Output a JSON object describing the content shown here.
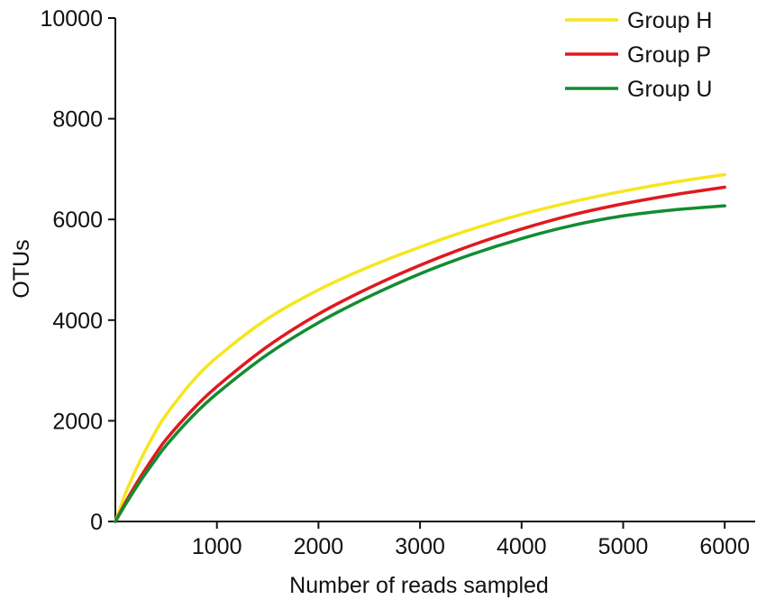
{
  "chart_data": {
    "type": "line",
    "title": "",
    "xlabel": "Number of reads sampled",
    "ylabel": "OTUs",
    "xlim": [
      0,
      6300
    ],
    "ylim": [
      0,
      10000
    ],
    "xticks": [
      1000,
      2000,
      3000,
      4000,
      5000,
      6000
    ],
    "xtick_labels": [
      "1000",
      "2000",
      "3000",
      "4000",
      "5000",
      "6000"
    ],
    "yticks": [
      0,
      2000,
      4000,
      6000,
      8000,
      10000
    ],
    "ytick_labels": [
      "0",
      "2000",
      "4000",
      "6000",
      "8000",
      "10000"
    ],
    "grid": false,
    "legend_position": "top-right",
    "x": [
      0,
      100,
      200,
      300,
      400,
      500,
      750,
      1000,
      1500,
      2000,
      2500,
      3000,
      3500,
      4000,
      4500,
      5000,
      5500,
      6000
    ],
    "series": [
      {
        "name": "Group H",
        "color": "#f5e61e",
        "values": [
          0,
          560,
          1020,
          1430,
          1800,
          2120,
          2760,
          3260,
          4030,
          4600,
          5060,
          5450,
          5800,
          6100,
          6350,
          6560,
          6740,
          6890
        ]
      },
      {
        "name": "Group P",
        "color": "#e0191e",
        "values": [
          0,
          380,
          730,
          1050,
          1350,
          1630,
          2200,
          2680,
          3480,
          4120,
          4640,
          5090,
          5480,
          5810,
          6090,
          6310,
          6490,
          6640
        ]
      },
      {
        "name": "Group U",
        "color": "#128c32",
        "values": [
          0,
          340,
          660,
          960,
          1240,
          1510,
          2070,
          2540,
          3320,
          3950,
          4470,
          4920,
          5300,
          5620,
          5880,
          6070,
          6190,
          6270
        ]
      }
    ]
  }
}
